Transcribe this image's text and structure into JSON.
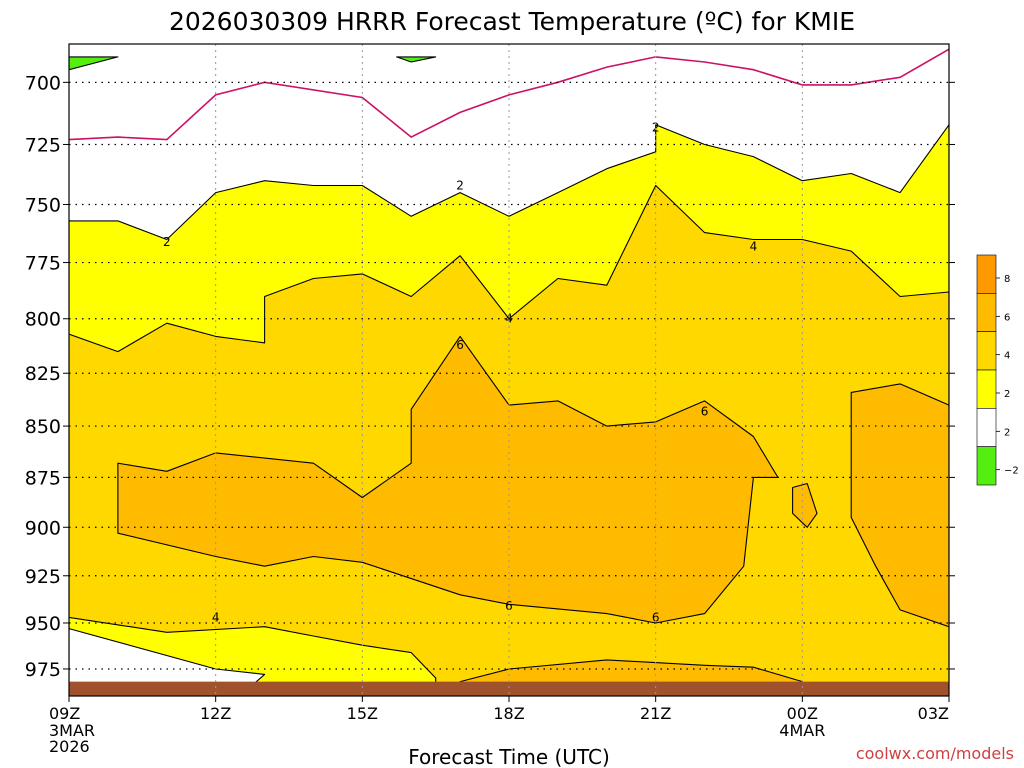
{
  "title": "2026030309 HRRR Forecast Temperature (ºC) for KMIE",
  "credit": "coolwx.com/models",
  "chart_data": {
    "type": "heatmap",
    "title": "2026030309 HRRR Forecast Temperature (ºC) for KMIE",
    "xlabel": "Forecast Time (UTC)",
    "ylabel": "",
    "x_ticks": [
      {
        "label": "09Z",
        "sub": [
          "3MAR",
          "2026"
        ]
      },
      {
        "label": "12Z",
        "sub": []
      },
      {
        "label": "15Z",
        "sub": []
      },
      {
        "label": "18Z",
        "sub": []
      },
      {
        "label": "21Z",
        "sub": []
      },
      {
        "label": "00Z",
        "sub": [
          "4MAR"
        ]
      },
      {
        "label": "03Z",
        "sub": []
      }
    ],
    "x_hours": [
      0,
      3,
      6,
      9,
      12,
      15,
      18
    ],
    "x_range_hours": [
      0,
      18
    ],
    "y_ticks": [
      "700",
      "725",
      "750",
      "775",
      "800",
      "825",
      "850",
      "875",
      "900",
      "925",
      "950",
      "975"
    ],
    "y_values": [
      700,
      725,
      750,
      775,
      800,
      825,
      850,
      875,
      900,
      925,
      950,
      975
    ],
    "y_range_hpa": [
      685,
      990
    ],
    "y_log": true,
    "grid": true,
    "colorbar": {
      "labels": [
        "8",
        "6",
        "4",
        "2",
        "2",
        "−2"
      ],
      "levels": [
        {
          "from": 8,
          "to": 10,
          "color": "#ff9900"
        },
        {
          "from": 6,
          "to": 8,
          "color": "#ffbb00"
        },
        {
          "from": 4,
          "to": 6,
          "color": "#ffd800"
        },
        {
          "from": 2,
          "to": 4,
          "color": "#ffff00"
        },
        {
          "from": -2,
          "to": 2,
          "color": "#ffffff"
        },
        {
          "from": -4,
          "to": -2,
          "color": "#55ee11"
        }
      ]
    },
    "contour_labels": [
      {
        "text": "2",
        "hour": 12.0,
        "p": 718
      },
      {
        "text": "2",
        "hour": 8.0,
        "p": 742
      },
      {
        "text": "2",
        "hour": 2.0,
        "p": 766
      },
      {
        "text": "4",
        "hour": 14.0,
        "p": 768
      },
      {
        "text": "4",
        "hour": 9.0,
        "p": 800
      },
      {
        "text": "6",
        "hour": 8.0,
        "p": 812
      },
      {
        "text": "6",
        "hour": 13.0,
        "p": 843
      },
      {
        "text": "6",
        "hour": 9.0,
        "p": 941
      },
      {
        "text": "6",
        "hour": 12.0,
        "p": 947
      },
      {
        "text": "4",
        "hour": 3.0,
        "p": 947
      }
    ],
    "regions": [
      {
        "value": 3,
        "color": "#ffff00",
        "pts": [
          [
            0,
            757
          ],
          [
            1,
            757
          ],
          [
            2,
            765
          ],
          [
            3,
            745
          ],
          [
            4,
            740
          ],
          [
            5,
            742
          ],
          [
            6,
            742
          ],
          [
            7,
            755
          ],
          [
            8,
            745
          ],
          [
            9,
            755
          ],
          [
            10,
            745
          ],
          [
            11,
            735
          ],
          [
            12,
            728
          ],
          [
            12,
            717
          ],
          [
            13,
            725
          ],
          [
            14,
            730
          ],
          [
            15,
            740
          ],
          [
            16,
            737
          ],
          [
            17,
            745
          ],
          [
            18,
            717
          ],
          [
            18,
            990
          ],
          [
            0,
            990
          ]
        ]
      },
      {
        "value": 5,
        "color": "#ffd800",
        "pts": [
          [
            0,
            807
          ],
          [
            1,
            815
          ],
          [
            2,
            802
          ],
          [
            3,
            808
          ],
          [
            4,
            811
          ],
          [
            4,
            790
          ],
          [
            5,
            782
          ],
          [
            6,
            780
          ],
          [
            7,
            790
          ],
          [
            8,
            772
          ],
          [
            9,
            800
          ],
          [
            10,
            782
          ],
          [
            11,
            785
          ],
          [
            12,
            742
          ],
          [
            13,
            762
          ],
          [
            14,
            765
          ],
          [
            15,
            765
          ],
          [
            16,
            770
          ],
          [
            17,
            790
          ],
          [
            18,
            788
          ],
          [
            18,
            990
          ],
          [
            0,
            990
          ]
        ]
      },
      {
        "value": 3,
        "color": "#ffff00",
        "pts": [
          [
            0,
            947
          ],
          [
            2,
            955
          ],
          [
            4,
            952
          ],
          [
            5,
            957
          ],
          [
            6,
            962
          ],
          [
            7,
            966
          ],
          [
            7.5,
            980
          ],
          [
            7.5,
            990
          ],
          [
            0,
            990
          ]
        ]
      },
      {
        "value": 1,
        "color": "#ffffff",
        "pts": [
          [
            0,
            953
          ],
          [
            3,
            975
          ],
          [
            4,
            978
          ],
          [
            3.5,
            990
          ],
          [
            0,
            990
          ]
        ]
      },
      {
        "value": 7,
        "color": "#ffbb00",
        "pts": [
          [
            1,
            868
          ],
          [
            2,
            872
          ],
          [
            3,
            863
          ],
          [
            5,
            868
          ],
          [
            6,
            885
          ],
          [
            7,
            868
          ],
          [
            7,
            842
          ],
          [
            8,
            808
          ],
          [
            9,
            840
          ],
          [
            10,
            838
          ],
          [
            11,
            850
          ],
          [
            12,
            848
          ],
          [
            13,
            838
          ],
          [
            14,
            855
          ],
          [
            14.5,
            875
          ],
          [
            14,
            875
          ],
          [
            13.8,
            920
          ],
          [
            13,
            945
          ],
          [
            12,
            950
          ],
          [
            11,
            945
          ],
          [
            9,
            940
          ],
          [
            8,
            935
          ],
          [
            6,
            918
          ],
          [
            5,
            915
          ],
          [
            4,
            920
          ],
          [
            3,
            915
          ],
          [
            1,
            903
          ],
          [
            1,
            890
          ]
        ]
      },
      {
        "value": 7,
        "color": "#ffbb00",
        "pts": [
          [
            14.8,
            880
          ],
          [
            15.1,
            878
          ],
          [
            15.3,
            893
          ],
          [
            15.1,
            900
          ],
          [
            14.8,
            893
          ]
        ]
      },
      {
        "value": 7,
        "color": "#ffbb00",
        "pts": [
          [
            18,
            840
          ],
          [
            17,
            830
          ],
          [
            16,
            834
          ],
          [
            16,
            895
          ],
          [
            16.5,
            920
          ],
          [
            17,
            943
          ],
          [
            18,
            952
          ]
        ]
      },
      {
        "value": 7,
        "color": "#ffbb00",
        "pts": [
          [
            8,
            982
          ],
          [
            9,
            975
          ],
          [
            11,
            970
          ],
          [
            13,
            973
          ],
          [
            14,
            974
          ],
          [
            15,
            982
          ],
          [
            15,
            990
          ],
          [
            8,
            990
          ]
        ]
      },
      {
        "value": -3,
        "color": "#55ee11",
        "pts": [
          [
            0,
            690
          ],
          [
            1,
            690
          ],
          [
            0,
            695
          ]
        ]
      },
      {
        "value": -3,
        "color": "#55ee11",
        "pts": [
          [
            6.7,
            690
          ],
          [
            7.5,
            690
          ],
          [
            7,
            692
          ]
        ]
      }
    ],
    "zero_line": [
      [
        0,
        723
      ],
      [
        1,
        722
      ],
      [
        2,
        723
      ],
      [
        3,
        705
      ],
      [
        4,
        700
      ],
      [
        6,
        706
      ],
      [
        7,
        722
      ],
      [
        8,
        712
      ],
      [
        9,
        705
      ],
      [
        10,
        700
      ],
      [
        11,
        694
      ],
      [
        12,
        690
      ],
      [
        13,
        692
      ],
      [
        14,
        695
      ],
      [
        15,
        701
      ],
      [
        16,
        701
      ],
      [
        17,
        698
      ],
      [
        18,
        687
      ]
    ],
    "ground_hpa": 982,
    "ground_color": "#a0522d"
  }
}
